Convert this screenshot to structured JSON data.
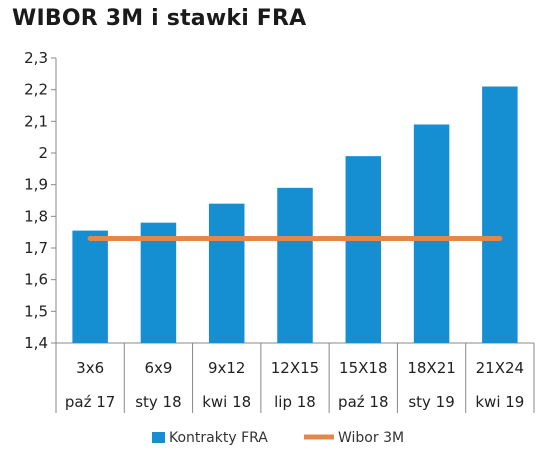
{
  "chart_data": {
    "type": "bar",
    "title": "WIBOR 3M i stawki FRA",
    "categories_top": [
      "3x6",
      "6x9",
      "9x12",
      "12X15",
      "15X18",
      "18X21",
      "21X24"
    ],
    "categories_bottom": [
      "paź 17",
      "sty 18",
      "kwi 18",
      "lip 18",
      "paź 18",
      "sty 19",
      "kwi 19"
    ],
    "series": [
      {
        "name": "Kontrakty FRA",
        "type": "bar",
        "color": "#168ed2",
        "values": [
          1.755,
          1.78,
          1.84,
          1.89,
          1.99,
          2.09,
          2.21
        ]
      },
      {
        "name": "Wibor 3M",
        "type": "line",
        "color": "#e4874a",
        "values": [
          1.73,
          1.73,
          1.73,
          1.73,
          1.73,
          1.73,
          1.73
        ]
      }
    ],
    "ylim": [
      1.4,
      2.3
    ],
    "yticks": [
      "1,4",
      "1,5",
      "1,6",
      "1,7",
      "1,8",
      "1,9",
      "2",
      "2,1",
      "2,2",
      "2,3"
    ],
    "grid": false,
    "legend_position": "bottom"
  }
}
